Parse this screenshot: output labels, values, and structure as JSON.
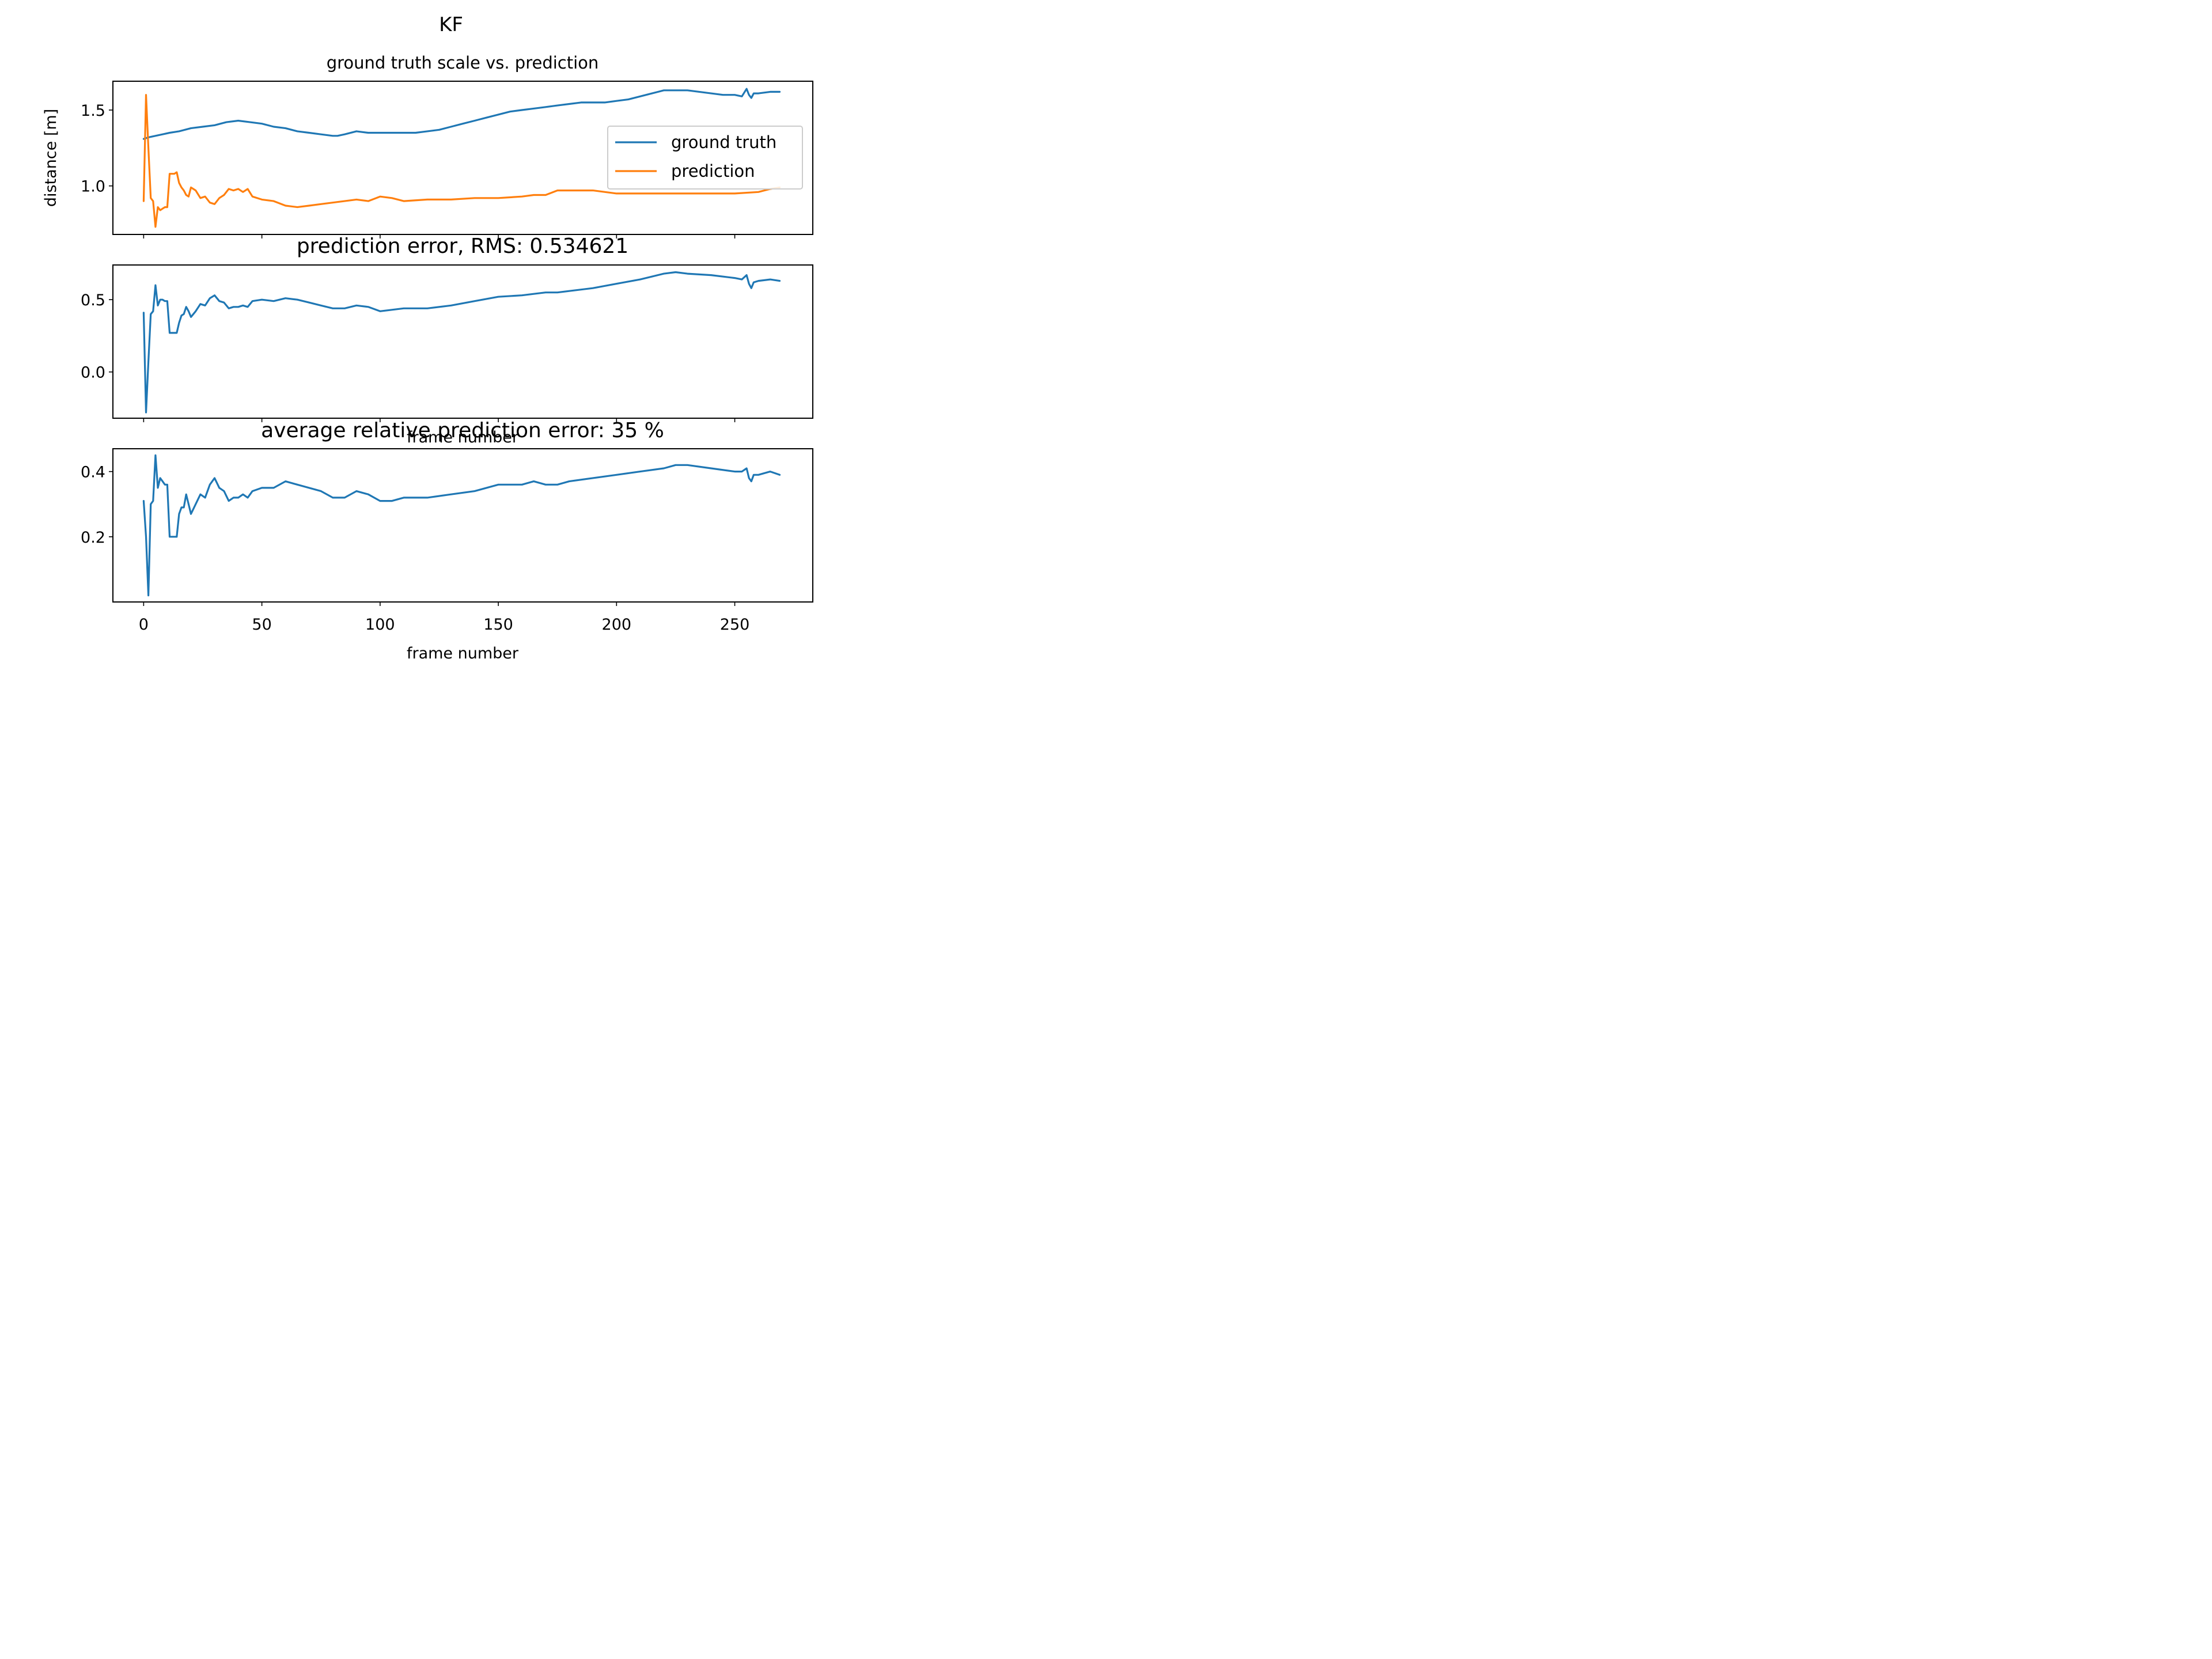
{
  "figure": {
    "suptitle": "KF",
    "colors": {
      "ground_truth": "#1f77b4",
      "prediction": "#ff7f0e"
    }
  },
  "chart_data": [
    {
      "type": "line",
      "title": "ground truth scale vs. prediction",
      "xlabel": "",
      "ylabel": "distance [m]",
      "xlim": [
        -13,
        283
      ],
      "ylim": [
        0.68,
        1.69
      ],
      "yticks": [
        1.0,
        1.5
      ],
      "ytick_labels": [
        "1.0",
        "1.5"
      ],
      "xticks": [
        0,
        50,
        100,
        150,
        200,
        250
      ],
      "legend": {
        "placement": "right",
        "entries": [
          "ground truth",
          "prediction"
        ]
      },
      "series": [
        {
          "name": "ground truth",
          "color": "#1f77b4",
          "x": [
            0,
            2,
            5,
            8,
            11,
            15,
            20,
            25,
            30,
            35,
            40,
            45,
            50,
            55,
            60,
            65,
            70,
            75,
            80,
            82,
            85,
            90,
            95,
            100,
            105,
            110,
            115,
            120,
            125,
            130,
            135,
            140,
            145,
            150,
            155,
            160,
            165,
            170,
            175,
            180,
            185,
            190,
            195,
            200,
            205,
            210,
            215,
            220,
            225,
            230,
            235,
            240,
            245,
            250,
            253,
            255,
            256,
            257,
            258,
            260,
            265,
            269
          ],
          "y": [
            1.31,
            1.32,
            1.33,
            1.34,
            1.35,
            1.36,
            1.38,
            1.39,
            1.4,
            1.42,
            1.43,
            1.42,
            1.41,
            1.39,
            1.38,
            1.36,
            1.35,
            1.34,
            1.33,
            1.33,
            1.34,
            1.36,
            1.35,
            1.35,
            1.35,
            1.35,
            1.35,
            1.36,
            1.37,
            1.39,
            1.41,
            1.43,
            1.45,
            1.47,
            1.49,
            1.5,
            1.51,
            1.52,
            1.53,
            1.54,
            1.55,
            1.55,
            1.55,
            1.56,
            1.57,
            1.59,
            1.61,
            1.63,
            1.63,
            1.63,
            1.62,
            1.61,
            1.6,
            1.6,
            1.59,
            1.64,
            1.6,
            1.58,
            1.61,
            1.61,
            1.62,
            1.62
          ]
        },
        {
          "name": "prediction",
          "color": "#ff7f0e",
          "x": [
            0,
            1,
            2,
            3,
            4,
            5,
            6,
            7,
            8,
            9,
            10,
            11,
            12,
            13,
            14,
            15,
            16,
            17,
            18,
            19,
            20,
            22,
            24,
            26,
            28,
            30,
            32,
            34,
            36,
            38,
            40,
            42,
            44,
            46,
            50,
            55,
            60,
            65,
            70,
            75,
            80,
            85,
            90,
            95,
            100,
            105,
            110,
            120,
            130,
            140,
            150,
            160,
            165,
            170,
            175,
            180,
            190,
            200,
            210,
            220,
            230,
            240,
            250,
            260,
            265,
            269
          ],
          "y": [
            0.9,
            1.6,
            1.25,
            0.92,
            0.9,
            0.73,
            0.86,
            0.84,
            0.85,
            0.86,
            0.86,
            1.08,
            1.08,
            1.08,
            1.09,
            1.02,
            0.99,
            0.97,
            0.94,
            0.93,
            0.99,
            0.97,
            0.92,
            0.93,
            0.89,
            0.88,
            0.92,
            0.94,
            0.98,
            0.97,
            0.98,
            0.96,
            0.98,
            0.93,
            0.91,
            0.9,
            0.87,
            0.86,
            0.87,
            0.88,
            0.89,
            0.9,
            0.91,
            0.9,
            0.93,
            0.92,
            0.9,
            0.91,
            0.91,
            0.92,
            0.92,
            0.93,
            0.94,
            0.94,
            0.97,
            0.97,
            0.97,
            0.95,
            0.95,
            0.95,
            0.95,
            0.95,
            0.95,
            0.96,
            0.98,
            0.99
          ]
        }
      ]
    },
    {
      "type": "line",
      "title": "prediction error, RMS: 0.534621",
      "xlabel": "frame number",
      "ylabel": "",
      "xlim": [
        -13,
        283
      ],
      "ylim": [
        -0.32,
        0.74
      ],
      "yticks": [
        0.0,
        0.5
      ],
      "ytick_labels": [
        "0.0",
        "0.5"
      ],
      "xticks": [
        0,
        50,
        100,
        150,
        200,
        250
      ],
      "series": [
        {
          "name": "",
          "color": "#1f77b4",
          "x": [
            0,
            1,
            2,
            3,
            4,
            5,
            6,
            7,
            8,
            9,
            10,
            11,
            12,
            13,
            14,
            15,
            16,
            17,
            18,
            19,
            20,
            22,
            24,
            26,
            28,
            30,
            32,
            34,
            36,
            38,
            40,
            42,
            44,
            46,
            50,
            55,
            60,
            65,
            70,
            75,
            80,
            85,
            90,
            95,
            100,
            105,
            110,
            120,
            130,
            140,
            150,
            160,
            165,
            170,
            175,
            180,
            190,
            200,
            210,
            220,
            225,
            230,
            240,
            250,
            253,
            255,
            256,
            257,
            258,
            260,
            265,
            269
          ],
          "y": [
            0.41,
            -0.28,
            0.07,
            0.4,
            0.42,
            0.6,
            0.46,
            0.5,
            0.5,
            0.49,
            0.49,
            0.27,
            0.27,
            0.27,
            0.27,
            0.34,
            0.39,
            0.4,
            0.45,
            0.42,
            0.38,
            0.42,
            0.47,
            0.46,
            0.51,
            0.53,
            0.49,
            0.48,
            0.44,
            0.45,
            0.45,
            0.46,
            0.45,
            0.49,
            0.5,
            0.49,
            0.51,
            0.5,
            0.48,
            0.46,
            0.44,
            0.44,
            0.46,
            0.45,
            0.42,
            0.43,
            0.44,
            0.44,
            0.46,
            0.49,
            0.52,
            0.53,
            0.54,
            0.55,
            0.55,
            0.56,
            0.58,
            0.61,
            0.64,
            0.68,
            0.69,
            0.68,
            0.67,
            0.65,
            0.64,
            0.67,
            0.61,
            0.58,
            0.62,
            0.63,
            0.64,
            0.63
          ]
        }
      ]
    },
    {
      "type": "line",
      "title": "average relative prediction error: 35 %",
      "xlabel": "frame number",
      "ylabel": "",
      "xlim": [
        -13,
        283
      ],
      "ylim": [
        0.0,
        0.47
      ],
      "yticks": [
        0.2,
        0.4
      ],
      "ytick_labels": [
        "0.2",
        "0.4"
      ],
      "xticks": [
        0,
        50,
        100,
        150,
        200,
        250
      ],
      "xtick_labels": [
        "0",
        "50",
        "100",
        "150",
        "200",
        "250"
      ],
      "series": [
        {
          "name": "",
          "color": "#1f77b4",
          "x": [
            0,
            1,
            2,
            3,
            4,
            5,
            6,
            7,
            8,
            9,
            10,
            11,
            12,
            13,
            14,
            15,
            16,
            17,
            18,
            19,
            20,
            22,
            24,
            26,
            28,
            30,
            32,
            34,
            36,
            38,
            40,
            42,
            44,
            46,
            50,
            55,
            60,
            65,
            70,
            75,
            80,
            85,
            90,
            95,
            100,
            105,
            110,
            120,
            130,
            140,
            150,
            160,
            165,
            170,
            175,
            180,
            190,
            200,
            210,
            220,
            225,
            230,
            240,
            250,
            253,
            255,
            256,
            257,
            258,
            260,
            265,
            269
          ],
          "y": [
            0.31,
            0.2,
            0.02,
            0.3,
            0.31,
            0.45,
            0.35,
            0.38,
            0.37,
            0.36,
            0.36,
            0.2,
            0.2,
            0.2,
            0.2,
            0.27,
            0.29,
            0.29,
            0.33,
            0.3,
            0.27,
            0.3,
            0.33,
            0.32,
            0.36,
            0.38,
            0.35,
            0.34,
            0.31,
            0.32,
            0.32,
            0.33,
            0.32,
            0.34,
            0.35,
            0.35,
            0.37,
            0.36,
            0.35,
            0.34,
            0.32,
            0.32,
            0.34,
            0.33,
            0.31,
            0.31,
            0.32,
            0.32,
            0.33,
            0.34,
            0.36,
            0.36,
            0.37,
            0.36,
            0.36,
            0.37,
            0.38,
            0.39,
            0.4,
            0.41,
            0.42,
            0.42,
            0.41,
            0.4,
            0.4,
            0.41,
            0.38,
            0.37,
            0.39,
            0.39,
            0.4,
            0.39
          ]
        }
      ]
    }
  ]
}
